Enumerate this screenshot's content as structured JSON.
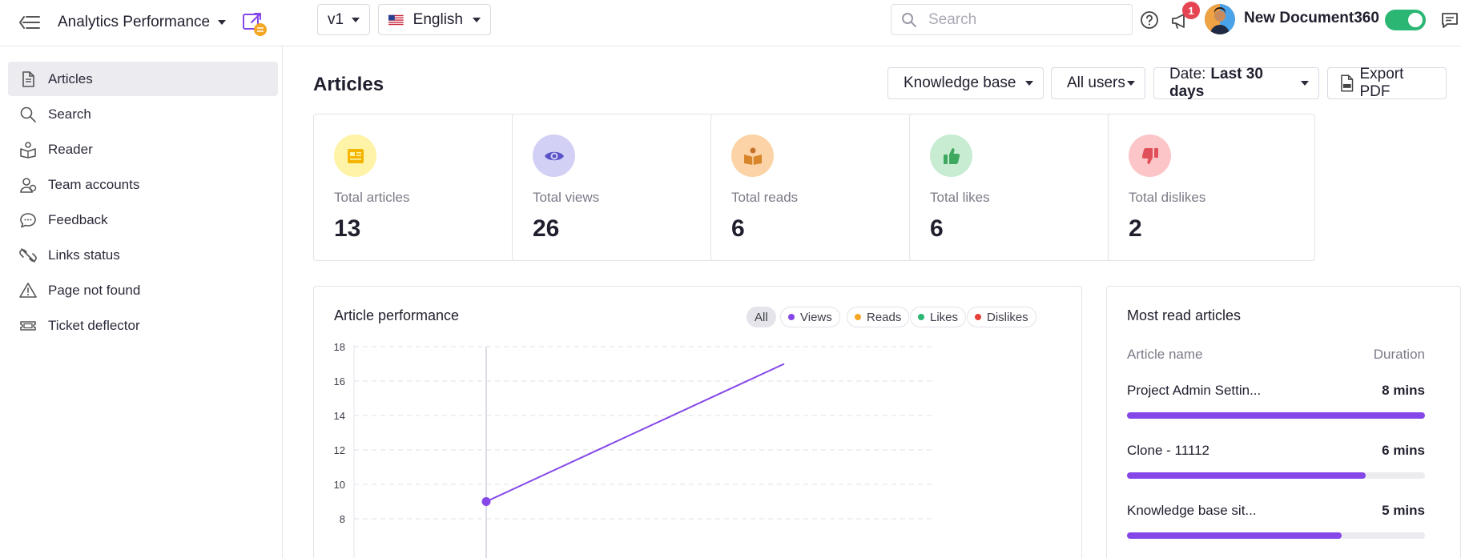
{
  "header": {
    "project_name": "Analytics Performance",
    "version": "v1",
    "language": "English",
    "search_placeholder": "Search",
    "notification_count": "1",
    "user_name": "New Document360"
  },
  "sidebar": {
    "items": [
      {
        "label": "Articles",
        "icon": "document-icon",
        "active": true
      },
      {
        "label": "Search",
        "icon": "search-icon"
      },
      {
        "label": "Reader",
        "icon": "reader-icon"
      },
      {
        "label": "Team accounts",
        "icon": "team-icon"
      },
      {
        "label": "Feedback",
        "icon": "chat-bubble-icon"
      },
      {
        "label": "Links status",
        "icon": "broken-link-icon"
      },
      {
        "label": "Page not found",
        "icon": "warning-icon"
      },
      {
        "label": "Ticket deflector",
        "icon": "ticket-icon"
      }
    ]
  },
  "main": {
    "title": "Articles",
    "filters": {
      "knowledge_base": "Knowledge base",
      "users": "All users",
      "date_label": "Date:",
      "date_value": "Last 30 days",
      "export": "Export PDF"
    },
    "stats": [
      {
        "label": "Total articles",
        "value": "13",
        "icon": "newspaper-icon",
        "color": "#f5b400",
        "bg": "#fff3a8"
      },
      {
        "label": "Total views",
        "value": "26",
        "icon": "eye-icon",
        "color": "#5b54c8",
        "bg": "#d3d0f5"
      },
      {
        "label": "Total reads",
        "value": "6",
        "icon": "reader-book-icon",
        "color": "#d7862a",
        "bg": "#fbd3a6"
      },
      {
        "label": "Total likes",
        "value": "6",
        "icon": "thumbs-up-icon",
        "color": "#3fa860",
        "bg": "#c7ecd2"
      },
      {
        "label": "Total dislikes",
        "value": "2",
        "icon": "thumbs-down-icon",
        "color": "#e0505a",
        "bg": "#fcc6c9"
      }
    ],
    "chart": {
      "title": "Article performance",
      "filters": [
        {
          "label": "All",
          "active": true
        },
        {
          "label": "Views",
          "color": "#8547e8"
        },
        {
          "label": "Reads",
          "color": "#f5a623"
        },
        {
          "label": "Likes",
          "color": "#2bb673"
        },
        {
          "label": "Dislikes",
          "color": "#e5403a"
        }
      ]
    },
    "most_read": {
      "title": "Most read articles",
      "col_name": "Article name",
      "col_duration": "Duration",
      "rows": [
        {
          "name": "Project Admin Settin...",
          "duration": "8 mins",
          "fraction": 1.0
        },
        {
          "name": "Clone - 11112",
          "duration": "6 mins",
          "fraction": 0.8
        },
        {
          "name": "Knowledge base sit...",
          "duration": "5 mins",
          "fraction": 0.72
        }
      ]
    }
  },
  "chart_data": {
    "type": "line",
    "title": "Article performance",
    "xlabel": "",
    "ylabel": "",
    "ylim": [
      8,
      18
    ],
    "y_ticks": [
      8,
      10,
      12,
      14,
      16,
      18
    ],
    "grid": true,
    "series": [
      {
        "name": "Views",
        "color": "#8547e8",
        "points": [
          [
            1,
            9
          ],
          [
            2,
            17
          ]
        ]
      }
    ]
  },
  "colors": {
    "accent": "#8547e8",
    "toggle_on": "#2bb673",
    "badge": "#e54552"
  }
}
